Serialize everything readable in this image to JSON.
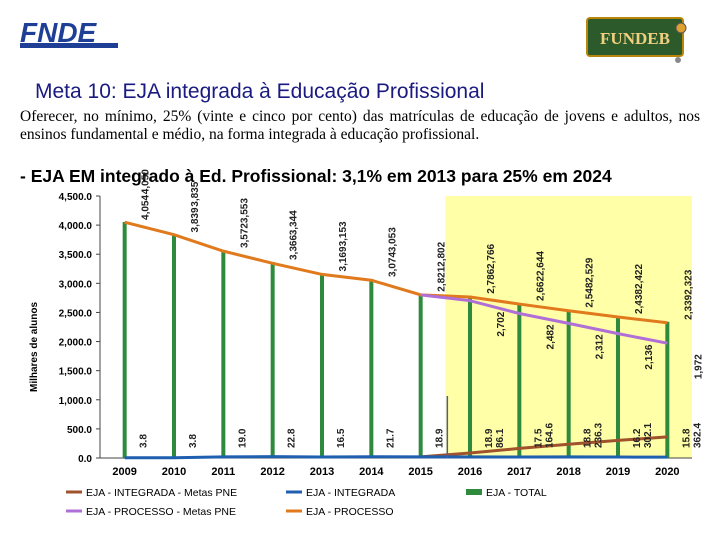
{
  "header": {
    "fnde_logo_text": "FNDE",
    "fundeb_logo_text": "FUNDEB",
    "title": "Meta 10: EJA integrada à Educação Profissional",
    "description": "Oferecer, no mínimo, 25% (vinte e cinco por cento) das matrículas de educação de jovens e adultos, nos ensinos fundamental e médio, na forma integrada à educação profissional.",
    "subtitle": "- EJA EM integrado à Ed. Profissional: 3,1% em 2013 para 25% em 2024"
  },
  "colors": {
    "title": "#1a1a80",
    "fnde_blue": "#1f3f96",
    "chart_bg": "#ffffff",
    "projection_bg": "#ffffa8",
    "bar": "#2e8b3e",
    "line_total_meta": "#a0522d",
    "line_integrada": "#1f5fb0",
    "line_processo_meta": "#b06fd6",
    "line_processo": "#e07a1c",
    "projection_line": "#4a5aa8"
  },
  "chart_data": {
    "type": "bar",
    "ylabel": "Milhares de alunos",
    "ylim": [
      0,
      4500
    ],
    "yticks": [
      "0.0",
      "500.0",
      "1,000.0",
      "1,500.0",
      "2,000.0",
      "2,500.0",
      "3,000.0",
      "3,500.0",
      "4,000.0",
      "4,500.0"
    ],
    "categories": [
      "2009",
      "2010",
      "2011",
      "2012",
      "2013",
      "2014",
      "2015",
      "2016",
      "2017",
      "2018",
      "2019",
      "2020"
    ],
    "projection_start": "2016",
    "series": [
      {
        "name": "EJA - TOTAL",
        "kind": "bar",
        "values": [
          4054,
          3839,
          3572,
          3366,
          3169,
          3074,
          2821,
          2786,
          2662,
          2548,
          2438,
          2339
        ]
      },
      {
        "name": "EJA - PROCESSO",
        "kind": "line",
        "values": [
          4050,
          3835,
          3553,
          3344,
          3153,
          3053,
          2802,
          2766,
          2644,
          2529,
          2422,
          2323
        ]
      },
      {
        "name": "EJA - INTEGRADA",
        "kind": "line",
        "values": [
          3.8,
          3.8,
          19.0,
          22.8,
          16.5,
          21.7,
          18.9,
          18.9,
          17.5,
          18.8,
          16.2,
          15.8
        ]
      },
      {
        "name": "EJA - INTEGRADA - Metas PNE",
        "kind": "line",
        "values": [
          null,
          null,
          null,
          null,
          null,
          null,
          null,
          86.1,
          164.6,
          236.3,
          302.1,
          362.4
        ]
      },
      {
        "name": "EJA - PROCESSO - Metas PNE",
        "kind": "line",
        "values": [
          null,
          null,
          null,
          null,
          null,
          null,
          null,
          2702,
          2482,
          2312,
          2136,
          1972
        ]
      }
    ],
    "labels": {
      "total": [
        "4,054",
        "3,839",
        "3,572",
        "3,366",
        "3,169",
        "3,074",
        "2,821",
        "2,786",
        "2,662",
        "2,548",
        "2,438",
        "2,339"
      ],
      "processo": [
        "4,050",
        "3,835",
        "3,553",
        "3,344",
        "3,153",
        "3,053",
        "2,802",
        "2,766",
        "2,644",
        "2,529",
        "2,422",
        "2,323"
      ],
      "integrada": [
        "3.8",
        "3.8",
        "19.0",
        "22.8",
        "16.5",
        "21.7",
        "18.9",
        "18.9",
        "17.5",
        "18.8",
        "16.2",
        "15.8"
      ],
      "integrada_meta": [
        "",
        "",
        "",
        "",
        "",
        "",
        "",
        "86.1",
        "164.6",
        "236.3",
        "302.1",
        "362.4"
      ],
      "processo_meta": [
        "",
        "",
        "",
        "",
        "",
        "",
        "",
        "2,702",
        "2,482",
        "2,312",
        "2,136",
        "1,972"
      ]
    },
    "legend": [
      {
        "name": "EJA - INTEGRADA - Metas PNE",
        "key": "line_total_meta",
        "kind": "line"
      },
      {
        "name": "EJA - INTEGRADA",
        "key": "line_integrada",
        "kind": "line"
      },
      {
        "name": "EJA - TOTAL",
        "key": "bar",
        "kind": "bar"
      },
      {
        "name": "EJA - PROCESSO - Metas PNE",
        "key": "line_processo_meta",
        "kind": "line"
      },
      {
        "name": "EJA - PROCESSO",
        "key": "line_processo",
        "kind": "line"
      }
    ]
  }
}
